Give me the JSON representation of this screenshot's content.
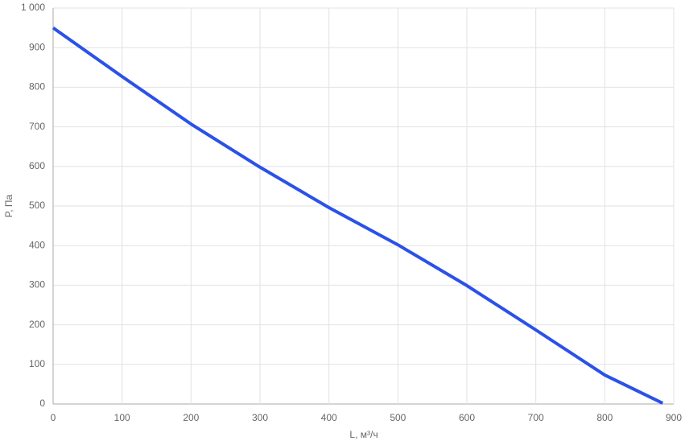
{
  "chart_data": {
    "type": "line",
    "x_label": "L, м³/ч",
    "y_label": "P, Па",
    "x": [
      0,
      100,
      200,
      300,
      400,
      500,
      600,
      700,
      800,
      884
    ],
    "series": [
      {
        "name": "P",
        "color": "#2a52e8",
        "values": [
          950,
          827,
          707,
          598,
          496,
          402,
          299,
          187,
          73,
          2
        ]
      }
    ],
    "xlim": [
      0,
      900
    ],
    "xticks": [
      0,
      100,
      200,
      300,
      400,
      500,
      600,
      700,
      800,
      900
    ],
    "ylim": [
      0,
      1000
    ],
    "yticks": [
      0,
      100,
      200,
      300,
      400,
      500,
      600,
      700,
      800,
      900,
      {
        "value": 1000,
        "label": "1 000"
      }
    ],
    "grid": true
  }
}
